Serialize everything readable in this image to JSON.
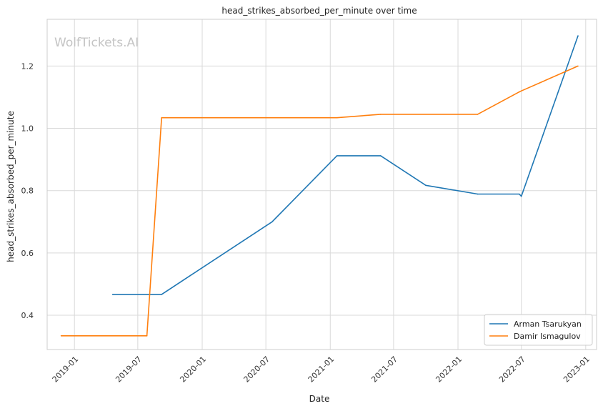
{
  "watermark": "WolfTickets.AI",
  "chart_data": {
    "type": "line",
    "title": "head_strikes_absorbed_per_minute over time",
    "xlabel": "Date",
    "ylabel": "head_strikes_absorbed_per_minute",
    "x_ticks": [
      "2019-01",
      "2019-07",
      "2020-01",
      "2020-07",
      "2021-01",
      "2021-07",
      "2022-01",
      "2022-07",
      "2023-01"
    ],
    "y_ticks": [
      "0.4",
      "0.6",
      "0.8",
      "1.0",
      "1.2"
    ],
    "ylim": [
      0.29,
      1.35
    ],
    "xlim": [
      "2018-10-15",
      "2023-02-01"
    ],
    "grid": true,
    "legend_position": "bottom-right",
    "series": [
      {
        "name": "Arman Tsarukyan",
        "color": "#1f77b4",
        "points": [
          [
            "2019-04-20",
            0.467
          ],
          [
            "2019-09-07",
            0.467
          ],
          [
            "2020-07-19",
            0.7
          ],
          [
            "2021-01-20",
            0.912
          ],
          [
            "2021-05-25",
            0.912
          ],
          [
            "2021-10-01",
            0.817
          ],
          [
            "2022-02-26",
            0.789
          ],
          [
            "2022-06-25",
            0.789
          ],
          [
            "2022-07-01",
            0.782
          ],
          [
            "2022-12-10",
            1.297
          ]
        ]
      },
      {
        "name": "Damir Ismagulov",
        "color": "#ff7f0e",
        "points": [
          [
            "2018-11-24",
            0.334
          ],
          [
            "2019-07-27",
            0.334
          ],
          [
            "2019-09-07",
            1.034
          ],
          [
            "2021-01-20",
            1.034
          ],
          [
            "2021-05-25",
            1.045
          ],
          [
            "2022-02-26",
            1.045
          ],
          [
            "2022-06-25",
            1.117
          ],
          [
            "2022-07-01",
            1.12
          ],
          [
            "2022-12-10",
            1.2
          ]
        ]
      }
    ]
  }
}
